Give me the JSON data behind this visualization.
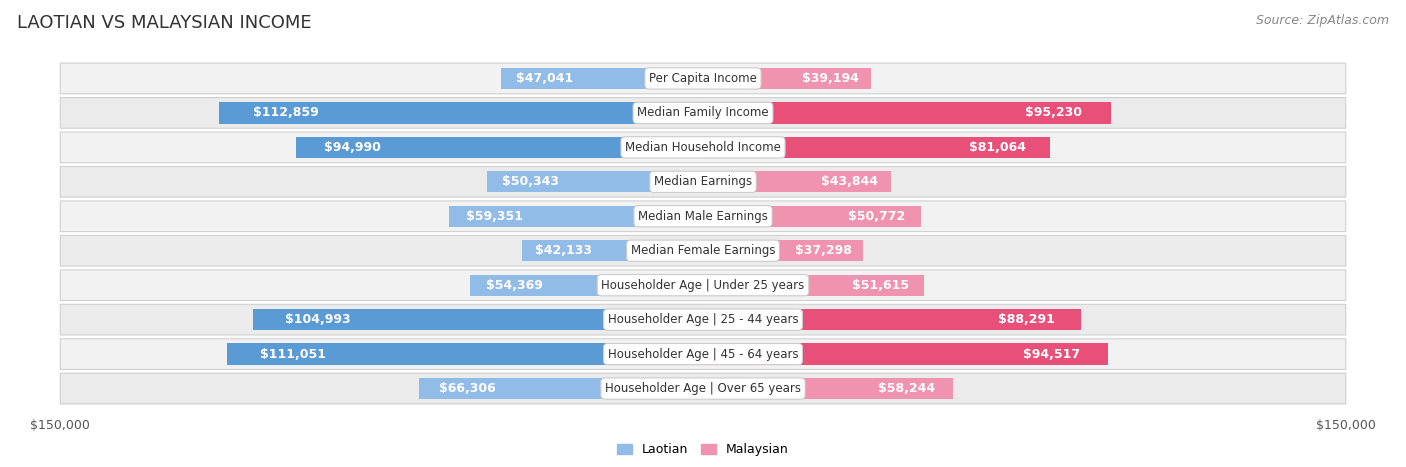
{
  "title": "LAOTIAN VS MALAYSIAN INCOME",
  "source": "Source: ZipAtlas.com",
  "categories": [
    "Per Capita Income",
    "Median Family Income",
    "Median Household Income",
    "Median Earnings",
    "Median Male Earnings",
    "Median Female Earnings",
    "Householder Age | Under 25 years",
    "Householder Age | 25 - 44 years",
    "Householder Age | 45 - 64 years",
    "Householder Age | Over 65 years"
  ],
  "laotian_values": [
    47041,
    112859,
    94990,
    50343,
    59351,
    42133,
    54369,
    104993,
    111051,
    66306
  ],
  "malaysian_values": [
    39194,
    95230,
    81064,
    43844,
    50772,
    37298,
    51615,
    88291,
    94517,
    58244
  ],
  "laotian_labels": [
    "$47,041",
    "$112,859",
    "$94,990",
    "$50,343",
    "$59,351",
    "$42,133",
    "$54,369",
    "$104,993",
    "$111,051",
    "$66,306"
  ],
  "malaysian_labels": [
    "$39,194",
    "$95,230",
    "$81,064",
    "$43,844",
    "$50,772",
    "$37,298",
    "$51,615",
    "$88,291",
    "$94,517",
    "$58,244"
  ],
  "laotian_color": "#92bce8",
  "malaysian_color": "#f093b0",
  "laotian_color_strong": "#5b9bd5",
  "malaysian_color_strong": "#e8507a",
  "max_value": 150000,
  "row_bg": "#f0f0f0",
  "row_border": "#d8d8d8",
  "title_fontsize": 13,
  "source_fontsize": 9,
  "bar_label_fontsize": 9,
  "cat_label_fontsize": 8.5,
  "legend_fontsize": 9,
  "axis_label_fontsize": 9,
  "inside_threshold": 35000
}
